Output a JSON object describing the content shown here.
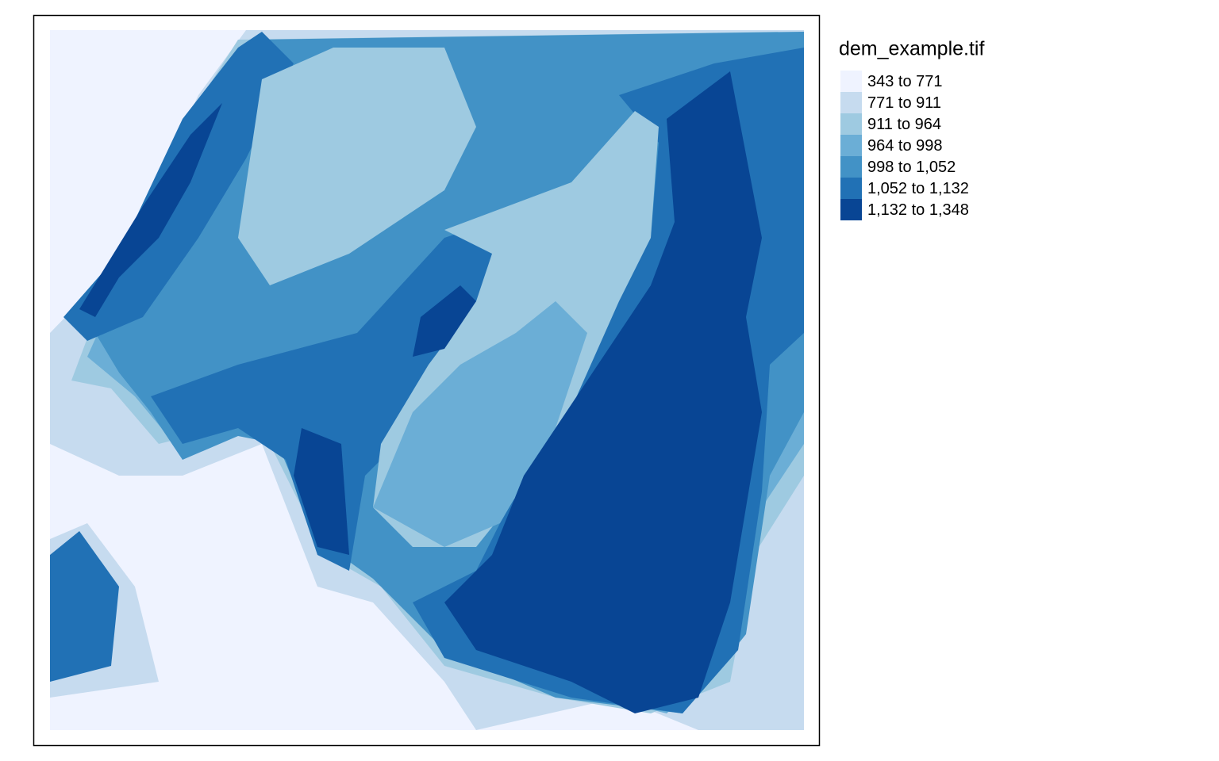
{
  "legend": {
    "title": "dem_example.tif",
    "items": [
      {
        "label": "343 to 771",
        "color": "#eff3ff"
      },
      {
        "label": "771 to 911",
        "color": "#c6dbef"
      },
      {
        "label": "911 to 964",
        "color": "#9ecae1"
      },
      {
        "label": "964 to 998",
        "color": "#6baed6"
      },
      {
        "label": "998 to 1,052",
        "color": "#4292c6"
      },
      {
        "label": "1,052 to 1,132",
        "color": "#2171b5"
      },
      {
        "label": "1,132 to 1,348",
        "color": "#084594"
      }
    ]
  }
}
